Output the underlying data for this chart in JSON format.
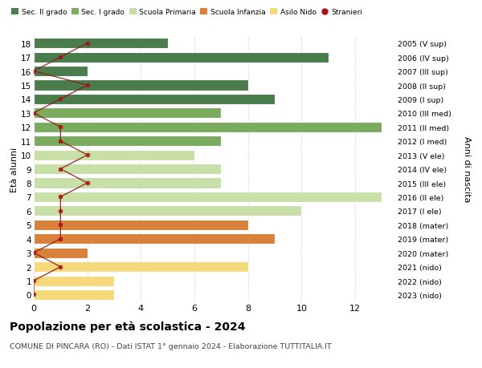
{
  "ages": [
    18,
    17,
    16,
    15,
    14,
    13,
    12,
    11,
    10,
    9,
    8,
    7,
    6,
    5,
    4,
    3,
    2,
    1,
    0
  ],
  "right_labels": [
    "2005 (V sup)",
    "2006 (IV sup)",
    "2007 (III sup)",
    "2008 (II sup)",
    "2009 (I sup)",
    "2010 (III med)",
    "2011 (II med)",
    "2012 (I med)",
    "2013 (V ele)",
    "2014 (IV ele)",
    "2015 (III ele)",
    "2016 (II ele)",
    "2017 (I ele)",
    "2018 (mater)",
    "2019 (mater)",
    "2020 (mater)",
    "2021 (nido)",
    "2022 (nido)",
    "2023 (nido)"
  ],
  "bar_values": [
    5,
    11,
    2,
    8,
    9,
    7,
    13,
    7,
    6,
    7,
    7,
    13,
    10,
    8,
    9,
    2,
    8,
    3,
    3
  ],
  "bar_colors": [
    "#4a7c4e",
    "#4a7c4e",
    "#4a7c4e",
    "#4a7c4e",
    "#4a7c4e",
    "#7aab5e",
    "#7aab5e",
    "#7aab5e",
    "#c8dfa8",
    "#c8dfa8",
    "#c8dfa8",
    "#c8dfa8",
    "#c8dfa8",
    "#d9813a",
    "#d9813a",
    "#d9813a",
    "#f5d97a",
    "#f5d97a",
    "#f5d97a"
  ],
  "stranieri_values": [
    2,
    1,
    0,
    2,
    1,
    0,
    1,
    1,
    2,
    1,
    2,
    1,
    1,
    1,
    1,
    0,
    1,
    0,
    0
  ],
  "legend_labels": [
    "Sec. II grado",
    "Sec. I grado",
    "Scuola Primaria",
    "Scuola Infanzia",
    "Asilo Nido",
    "Stranieri"
  ],
  "legend_colors": [
    "#4a7c4e",
    "#7aab5e",
    "#c8dfa8",
    "#d9813a",
    "#f5d97a",
    "#aa1111"
  ],
  "ylabel": "Età alunni",
  "right_ylabel": "Anni di nascita",
  "title": "Popolazione per età scolastica - 2024",
  "subtitle": "COMUNE DI PINCARA (RO) - Dati ISTAT 1° gennaio 2024 - Elaborazione TUTTITALIA.IT",
  "xlim": [
    0,
    13.5
  ],
  "xticks": [
    0,
    2,
    4,
    6,
    8,
    10,
    12
  ],
  "background_color": "#ffffff",
  "grid_color": "#cccccc"
}
